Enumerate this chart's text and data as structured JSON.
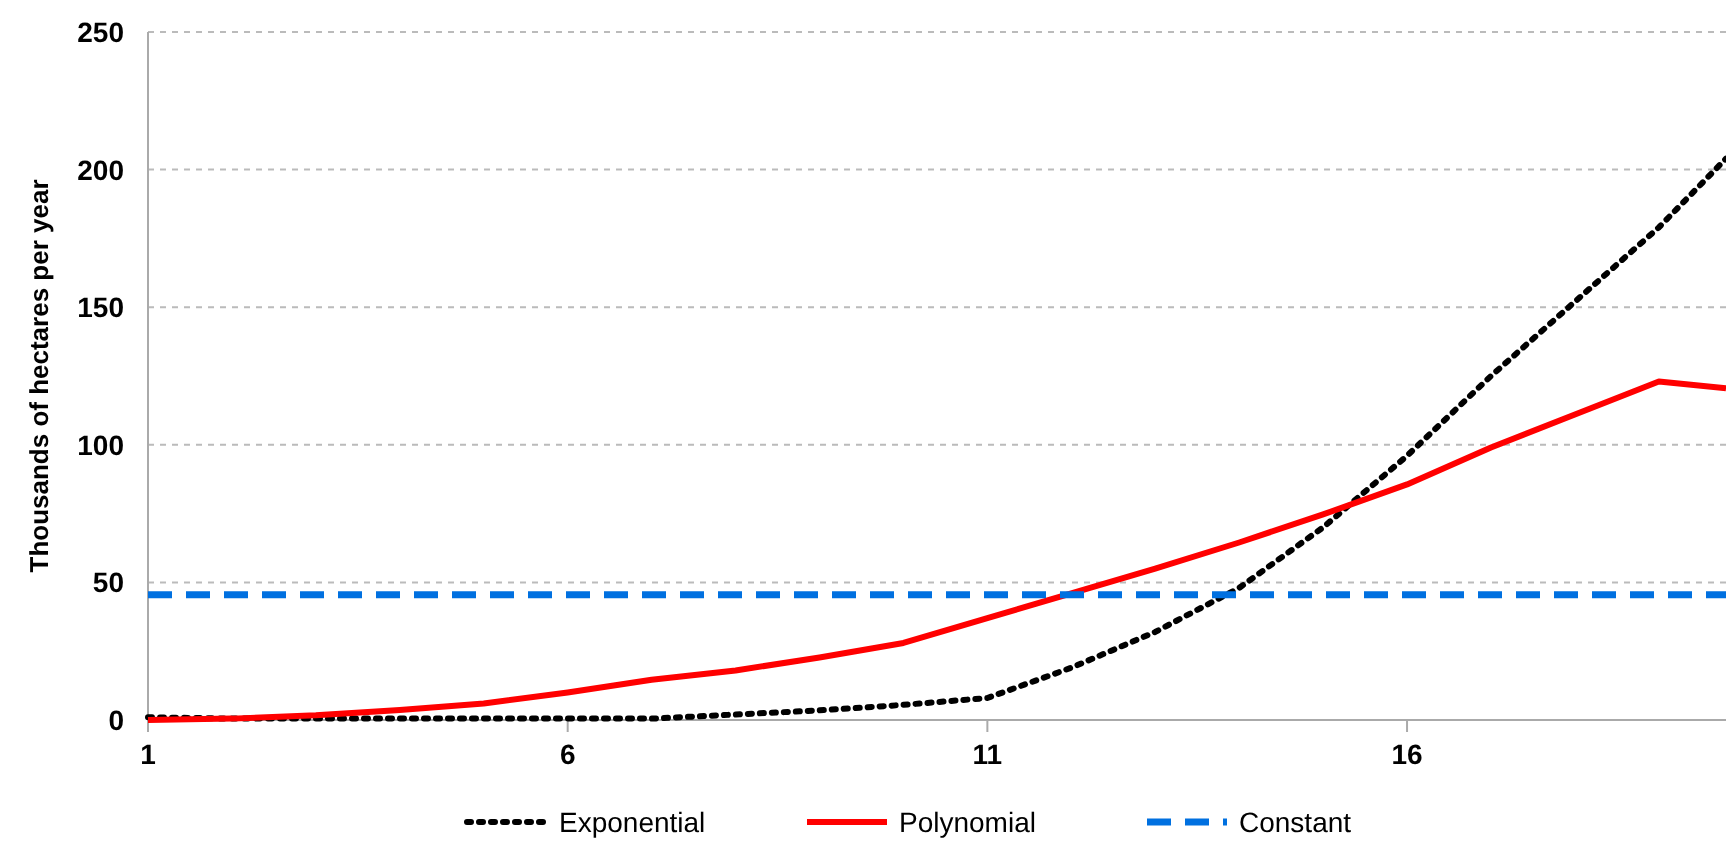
{
  "chart_data": {
    "type": "line",
    "ylabel": "Thousands of hectares per year",
    "x": [
      1,
      2,
      3,
      4,
      5,
      6,
      7,
      8,
      9,
      10,
      11,
      12,
      13,
      14,
      15,
      16,
      17,
      18,
      19,
      19.8
    ],
    "xlim": [
      1,
      19.8
    ],
    "xticks": [
      1,
      6,
      11,
      16
    ],
    "ylim": [
      0,
      250
    ],
    "yticks": [
      0,
      50,
      100,
      150,
      200,
      250
    ],
    "grid": "y",
    "legend": "bottom",
    "marker": "none",
    "series": [
      {
        "name": "Exponential",
        "color": "#000000",
        "line_style": "dotted",
        "values": [
          1,
          0.5,
          0.5,
          0.5,
          0.5,
          0.5,
          0.5,
          2,
          3.5,
          5.5,
          8,
          19,
          32,
          48,
          70,
          96,
          125,
          152,
          179,
          204
        ]
      },
      {
        "name": "Polynomial",
        "color": "#ff0000",
        "line_style": "solid",
        "values": [
          0,
          0.5,
          1.7,
          3.6,
          6,
          10,
          14.6,
          18,
          22.7,
          28,
          37,
          46,
          55,
          64.5,
          74.7,
          85.6,
          99,
          111,
          123,
          120.5
        ]
      },
      {
        "name": "Constant",
        "color": "#0070e0",
        "line_style": "dashed",
        "values": [
          45.5,
          45.5,
          45.5,
          45.5,
          45.5,
          45.5,
          45.5,
          45.5,
          45.5,
          45.5,
          45.5,
          45.5,
          45.5,
          45.5,
          45.5,
          45.5,
          45.5,
          45.5,
          45.5,
          45.5
        ]
      }
    ]
  }
}
